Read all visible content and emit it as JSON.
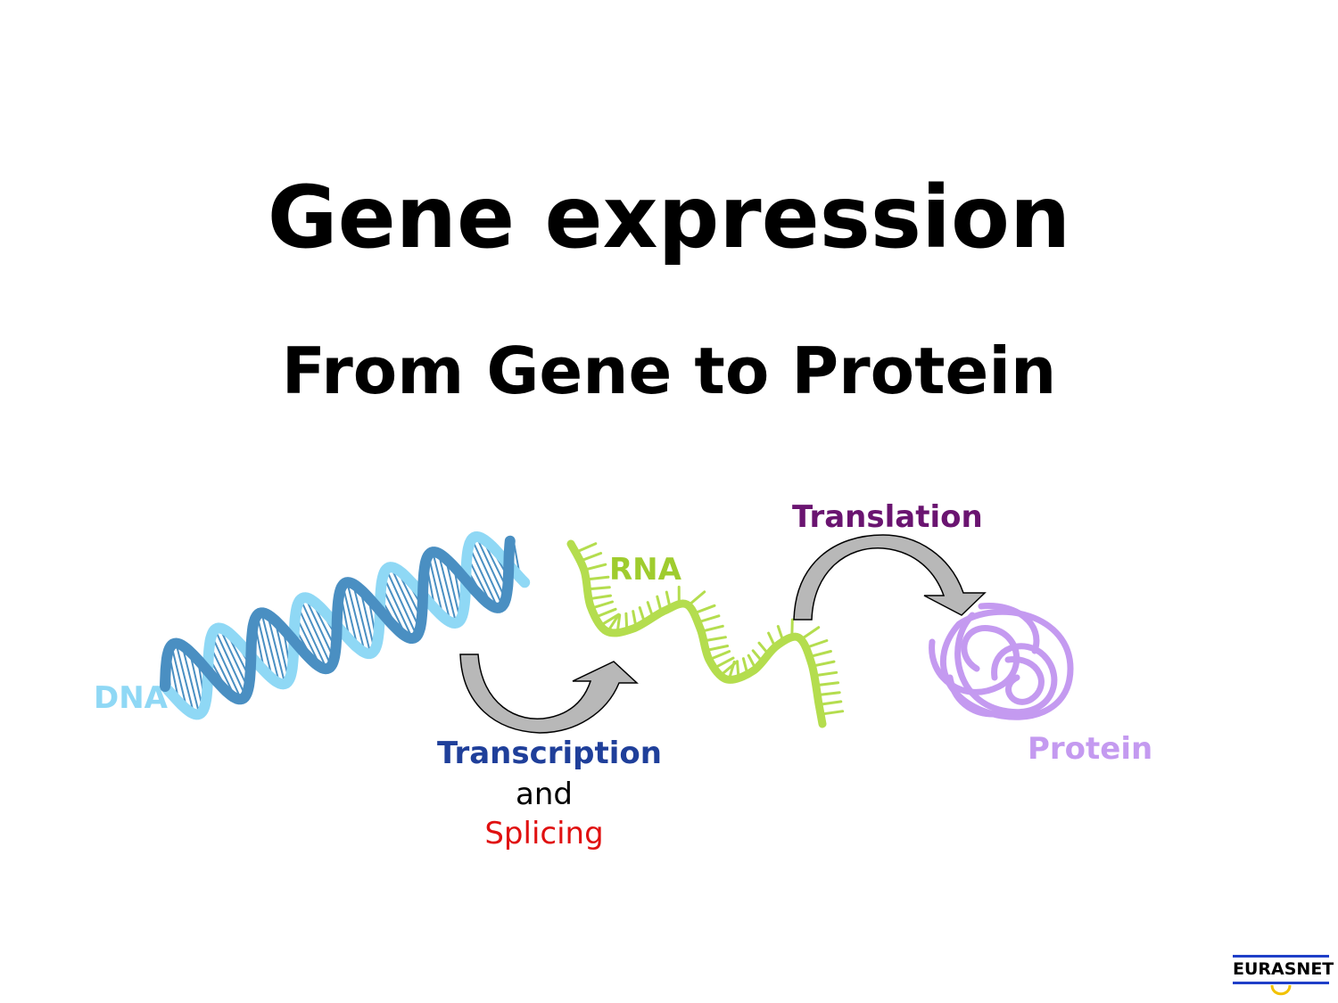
{
  "title": "Gene expression",
  "subtitle": "From Gene to Protein",
  "labels": {
    "dna": "DNA",
    "rna": "RNA",
    "translation": "Translation",
    "protein": "Protein",
    "transcription": "Transcription",
    "and": "and",
    "splicing": "Splicing"
  },
  "logo": {
    "text": "EURASNET"
  },
  "colors": {
    "dna_light": "#8fd8f5",
    "dna_dark": "#4a8fc2",
    "rna": "#b4dd4e",
    "protein": "#c49af0",
    "arrow_fill": "#b8b8b8",
    "arrow_stroke": "#000000",
    "transcription_text": "#1f3f9a",
    "splicing_text": "#e01010",
    "translation_text": "#6a1470",
    "logo_blue": "#1f3fc8",
    "logo_yellow": "#f2c200"
  }
}
